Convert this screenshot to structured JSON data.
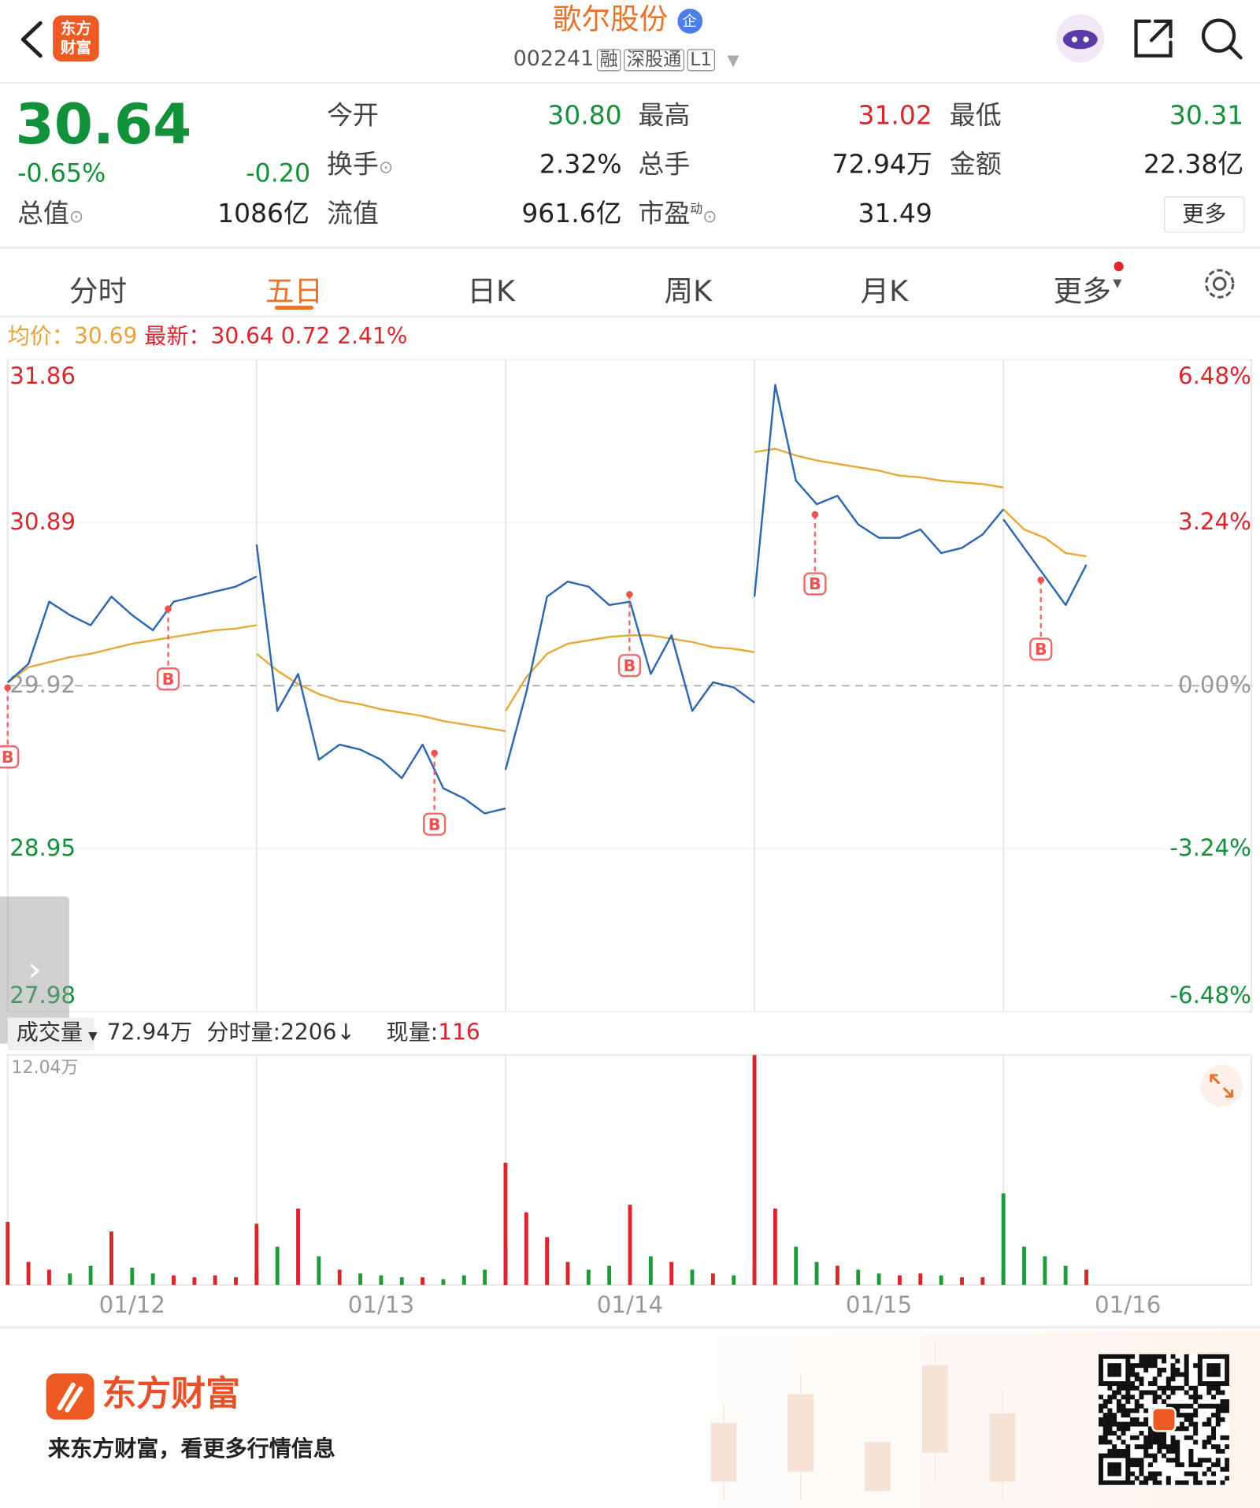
{
  "header": {
    "title": "歌尔股份",
    "badge": "企",
    "code": "002241",
    "tags": [
      "融",
      "深股通",
      "L1"
    ],
    "logo": "东方财富"
  },
  "quote": {
    "price": "30.64",
    "change_pct": "-0.65%",
    "change": "-0.20",
    "total_value_label": "总值",
    "total_value": "1086亿",
    "fields": [
      {
        "label": "今开",
        "value": "30.80"
      },
      {
        "label": "最高",
        "value": "31.02"
      },
      {
        "label": "最低",
        "value": "30.31"
      },
      {
        "label": "换手",
        "value": "2.32%"
      },
      {
        "label": "总手",
        "value": "72.94万"
      },
      {
        "label": "金额",
        "value": "22.38亿"
      },
      {
        "label": "流值",
        "value": "961.6亿"
      },
      {
        "label": "市盈",
        "sup": "动",
        "value": "31.49"
      }
    ],
    "more": "更多"
  },
  "tabs": [
    "分时",
    "五日",
    "日K",
    "周K",
    "月K",
    "更多"
  ],
  "active_tab": 1,
  "info_bar": {
    "avg_label": "均价：",
    "avg": "30.69",
    "latest_label": "最新：",
    "latest": "30.64",
    "change": "0.72",
    "change_pct": "2.41%"
  },
  "chart_data": {
    "type": "line",
    "categories": [
      "01/12",
      "01/13",
      "01/14",
      "01/15",
      "01/16"
    ],
    "ylim": [
      27.98,
      31.86
    ],
    "yticks": [
      27.98,
      28.95,
      29.92,
      30.89,
      31.86
    ],
    "y2lim": [
      -6.48,
      6.48
    ],
    "y2ticks": [
      {
        "value": -6.48,
        "label": "-6.48%"
      },
      {
        "value": -3.24,
        "label": "-3.24%"
      },
      {
        "value": 0,
        "label": "0.00%"
      },
      {
        "value": 3.24,
        "label": "3.24%"
      },
      {
        "value": 6.48,
        "label": "6.48%"
      }
    ],
    "price": {
      "color": "#2c67b0",
      "values": [
        [
          29.94,
          30.05,
          30.42,
          30.34,
          30.28,
          30.45,
          30.34,
          30.25,
          30.42,
          30.45,
          30.48,
          30.51,
          30.57
        ],
        [
          30.76,
          29.77,
          29.99,
          29.48,
          29.57,
          29.54,
          29.48,
          29.37,
          29.57,
          29.31,
          29.25,
          29.16,
          29.19
        ],
        [
          29.42,
          29.88,
          30.45,
          30.54,
          30.51,
          30.4,
          30.42,
          29.99,
          30.22,
          29.77,
          29.94,
          29.91,
          29.82
        ],
        [
          30.45,
          31.71,
          31.14,
          31.0,
          31.05,
          30.88,
          30.8,
          30.8,
          30.85,
          30.71,
          30.74,
          30.82,
          30.97
        ],
        [
          30.91,
          30.74,
          30.57,
          30.4,
          30.64
        ]
      ]
    },
    "avg": {
      "color": "#e8a93a",
      "values": [
        [
          29.94,
          30.03,
          30.06,
          30.09,
          30.11,
          30.14,
          30.17,
          30.19,
          30.21,
          30.23,
          30.25,
          30.26,
          30.28
        ],
        [
          30.11,
          30.01,
          29.93,
          29.87,
          29.83,
          29.81,
          29.78,
          29.76,
          29.74,
          29.71,
          29.69,
          29.67,
          29.65
        ],
        [
          29.77,
          29.97,
          30.11,
          30.17,
          30.19,
          30.21,
          30.22,
          30.22,
          30.2,
          30.18,
          30.15,
          30.14,
          30.12
        ],
        [
          31.31,
          31.33,
          31.29,
          31.26,
          31.24,
          31.22,
          31.2,
          31.17,
          31.16,
          31.14,
          31.13,
          31.12,
          31.1
        ],
        [
          30.97,
          30.85,
          30.8,
          30.71,
          30.69
        ]
      ]
    },
    "buy_marker": "B"
  },
  "volume_header": {
    "label": "成交量",
    "total": "72.94万",
    "tick_label": "分时量:",
    "tick_value": "2206",
    "arrow": "↓",
    "current_label": "现量:",
    "current": "116"
  },
  "volume_chart": {
    "type": "bar",
    "ylim": [
      0,
      120400
    ],
    "yticks": [
      {
        "value": 120400,
        "label": "12.04万"
      }
    ],
    "up_color": "#d9262c",
    "down_color": "#1f9a3a",
    "values": [
      [
        33000,
        12000,
        8000,
        6000,
        10000,
        28000,
        9000,
        6000,
        5000,
        4000,
        5000,
        4000,
        8000
      ],
      [
        32000,
        20000,
        40000,
        15000,
        8000,
        6000,
        5000,
        4000,
        4000,
        3000,
        5000,
        8000,
        20000
      ],
      [
        64000,
        38000,
        25000,
        12000,
        8000,
        10000,
        42000,
        15000,
        12000,
        8000,
        6000,
        5000,
        10000
      ],
      [
        120400,
        40000,
        20000,
        12000,
        10000,
        8000,
        6000,
        5000,
        6000,
        5000,
        4000,
        4000,
        8000
      ],
      [
        48000,
        20000,
        15000,
        10000,
        8000
      ]
    ]
  },
  "footer": {
    "brand": "东方财富",
    "slogan": "来东方财富，看更多行情信息"
  }
}
